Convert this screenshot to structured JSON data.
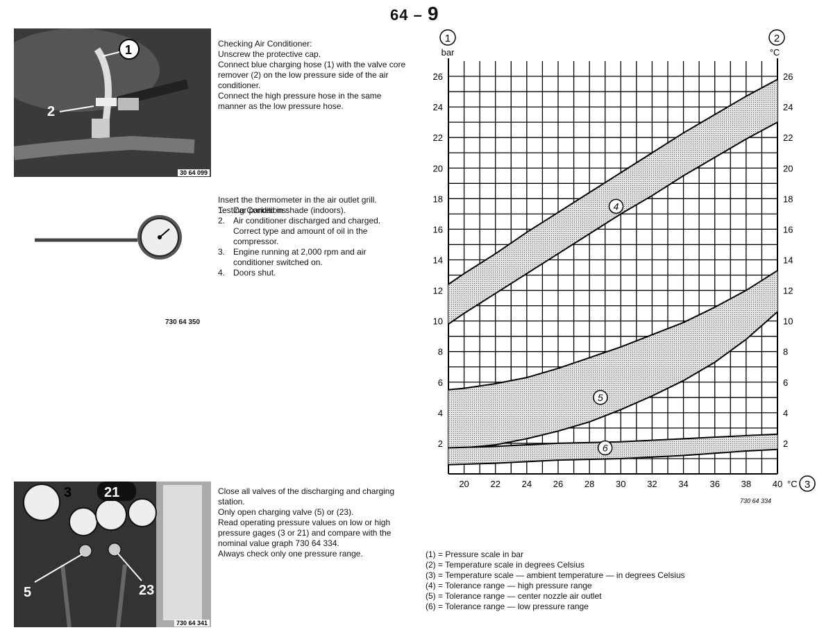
{
  "page": {
    "number_main": "64",
    "number_sub": "9"
  },
  "section1": {
    "heading": "Checking Air Conditioner:",
    "body": "Unscrew the protective cap.\nConnect blue charging hose (1) with the valve core remover (2) on the low pressure side of the air conditioner.\nConnect the high pressure hose in the same manner as the low pressure hose.",
    "photo_code": "30 64 099",
    "callouts": [
      "1",
      "2"
    ]
  },
  "section2": {
    "intro": "Insert the thermometer in the air outlet grill.",
    "subheading": "Testing Conditions:",
    "steps": [
      {
        "n": "1.",
        "text": "Car parked in shade (indoors)."
      },
      {
        "n": "2.",
        "text": "Air conditioner discharged and charged. Correct type and amount of oil in the compressor."
      },
      {
        "n": "3.",
        "text": "Engine running at 2,000 rpm and air conditioner switched on."
      },
      {
        "n": "4.",
        "text": "Doors shut."
      }
    ],
    "photo_code": "730 64 350"
  },
  "section3": {
    "body": "Close all valves of the discharging and charging station.\nOnly open charging valve (5) or (23).\nRead operating pressure values on low or high pressure gages (3 or 21) and compare with the nominal value graph 730 64 334.\nAlways check only one pressure range.",
    "photo_code": "730 64 341",
    "callouts": [
      "3",
      "21",
      "5",
      "23"
    ]
  },
  "chart_data": {
    "type": "area",
    "left_axis": {
      "marker": "1",
      "unit": "bar"
    },
    "right_axis": {
      "marker": "2",
      "unit": "°C"
    },
    "x_axis": {
      "marker": "3",
      "unit": "°C"
    },
    "xlim": [
      19,
      40
    ],
    "ylim": [
      0,
      27
    ],
    "x_ticks": [
      20,
      22,
      24,
      26,
      28,
      30,
      32,
      34,
      36,
      38,
      40
    ],
    "x_tick_labels": [
      "20",
      "22",
      "24",
      "26",
      "28",
      "30",
      "32",
      "34",
      "36",
      "38",
      "40"
    ],
    "y_ticks": [
      2,
      4,
      6,
      8,
      10,
      12,
      14,
      16,
      18,
      20,
      22,
      24,
      26
    ],
    "y_tick_labels": [
      "2",
      "4",
      "6",
      "8",
      "10",
      "12",
      "14",
      "16",
      "18",
      "20",
      "22",
      "24",
      "26"
    ],
    "grid": true,
    "figure_code": "730 64 334",
    "bands": [
      {
        "label": "4",
        "label_at": [
          29.7,
          17.5
        ],
        "x": [
          19,
          20,
          22,
          24,
          26,
          28,
          30,
          32,
          34,
          36,
          38,
          40
        ],
        "upper": [
          12.4,
          13.1,
          14.4,
          15.8,
          17.1,
          18.4,
          19.7,
          21.0,
          22.3,
          23.5,
          24.7,
          25.8
        ],
        "lower": [
          9.8,
          10.5,
          11.8,
          13.1,
          14.4,
          15.7,
          17.0,
          18.2,
          19.5,
          20.7,
          21.9,
          23.0
        ]
      },
      {
        "label": "5",
        "label_at": [
          28.7,
          5.0
        ],
        "x": [
          19,
          20,
          22,
          24,
          26,
          28,
          30,
          32,
          34,
          36,
          38,
          40
        ],
        "upper": [
          5.5,
          5.6,
          5.9,
          6.3,
          6.9,
          7.6,
          8.3,
          9.1,
          9.9,
          10.9,
          12.0,
          13.3
        ],
        "lower": [
          1.6,
          1.7,
          1.9,
          2.3,
          2.8,
          3.4,
          4.2,
          5.1,
          6.1,
          7.3,
          8.8,
          10.6
        ]
      },
      {
        "label": "6",
        "label_at": [
          29.0,
          1.7
        ],
        "x": [
          19,
          22,
          26,
          30,
          34,
          38,
          40
        ],
        "upper": [
          1.7,
          1.8,
          2.0,
          2.1,
          2.3,
          2.5,
          2.6
        ],
        "lower": [
          0.6,
          0.7,
          0.9,
          1.0,
          1.2,
          1.5,
          1.6
        ]
      }
    ]
  },
  "legend": [
    "(1) = Pressure scale in bar",
    "(2) = Temperature scale in degrees Celsius",
    "(3) = Temperature scale — ambient temperature — in degrees Celsius",
    "(4) = Tolerance range — high pressure range",
    "(5) = Tolerance range — center nozzle air outlet",
    "(6) = Tolerance range — low pressure range"
  ]
}
